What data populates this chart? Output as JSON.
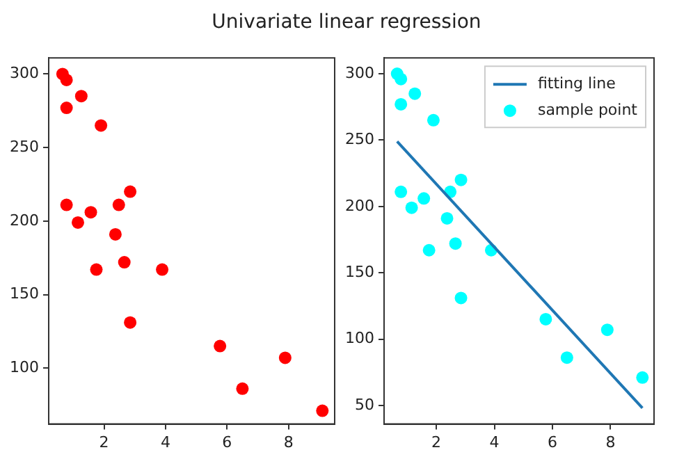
{
  "chart_data": [
    {
      "type": "scatter",
      "title": "Univariate linear regression",
      "x": [
        0.65,
        0.78,
        0.78,
        1.26,
        1.9,
        0.78,
        1.15,
        1.57,
        2.48,
        2.85,
        2.37,
        1.75,
        2.66,
        2.85,
        3.89,
        5.77,
        6.5,
        7.89,
        9.1
      ],
      "values": [
        300,
        296,
        277,
        285,
        265,
        211,
        199,
        206,
        211,
        220,
        191,
        167,
        172,
        131,
        167,
        115,
        86,
        107,
        71
      ],
      "color": "#ff0000",
      "marker": "circle",
      "xlim": [
        0.2,
        9.5
      ],
      "ylim": [
        62,
        311
      ],
      "xticks": [
        2,
        4,
        6,
        8
      ],
      "yticks": [
        100,
        150,
        200,
        250,
        300
      ],
      "grid": false
    },
    {
      "type": "scatter",
      "series": [
        {
          "name": "fitting line",
          "type": "line",
          "x": [
            0.65,
            9.1
          ],
          "values": [
            249,
            48
          ],
          "color": "#1f77b4",
          "marker": "none"
        },
        {
          "name": "sample point",
          "type": "scatter",
          "x": [
            0.65,
            0.78,
            0.78,
            1.26,
            1.9,
            0.78,
            1.15,
            1.57,
            2.48,
            2.85,
            2.37,
            1.75,
            2.66,
            2.85,
            3.89,
            5.77,
            6.5,
            7.89,
            9.1
          ],
          "values": [
            300,
            296,
            277,
            285,
            265,
            211,
            199,
            206,
            211,
            220,
            191,
            167,
            172,
            131,
            167,
            115,
            86,
            107,
            71
          ],
          "color": "#00ffff",
          "marker": "circle"
        }
      ],
      "xlim": [
        0.2,
        9.5
      ],
      "ylim": [
        36,
        312
      ],
      "xticks": [
        2,
        4,
        6,
        8
      ],
      "yticks": [
        50,
        100,
        150,
        200,
        250,
        300
      ],
      "grid": false,
      "legend": "top right"
    }
  ]
}
